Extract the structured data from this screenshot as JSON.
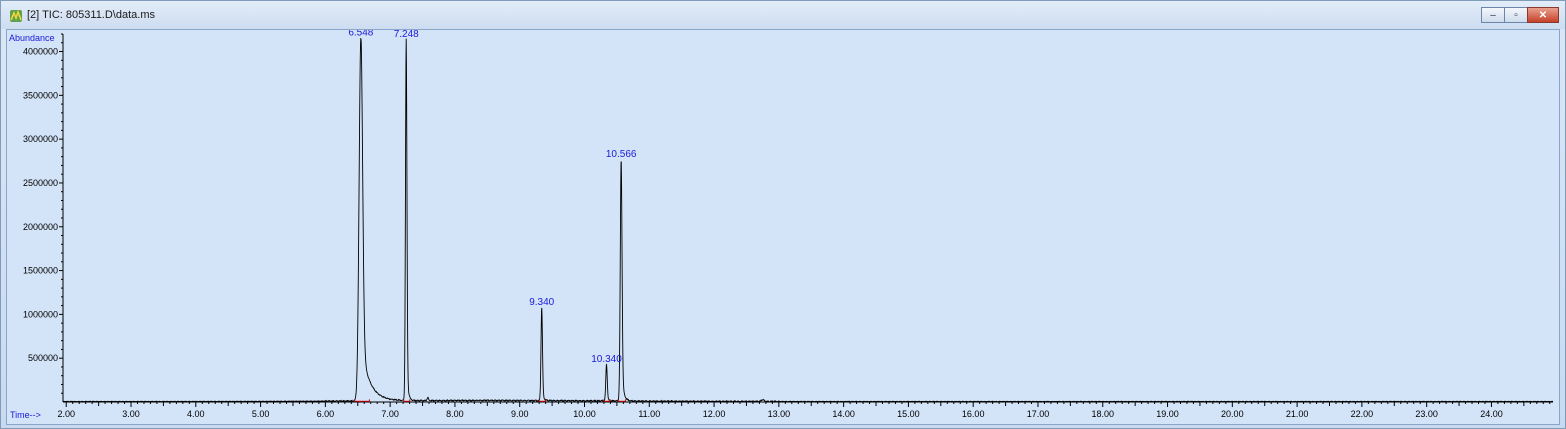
{
  "window": {
    "title": "[2] TIC: 805311.D\\data.ms",
    "icon": "chromatogram-app-icon",
    "buttons": [
      {
        "name": "minimize",
        "glyph": "–"
      },
      {
        "name": "maximize",
        "glyph": "▫"
      },
      {
        "name": "close",
        "glyph": "✕"
      }
    ]
  },
  "chart_data": {
    "type": "line",
    "ylabel": "Abundance",
    "xlabel": "Time-->",
    "xlim": [
      1.95,
      24.95
    ],
    "ylim": [
      0,
      4200000
    ],
    "x_ticks": [
      2,
      3,
      4,
      5,
      6,
      7,
      8,
      9,
      10,
      11,
      12,
      13,
      14,
      15,
      16,
      17,
      18,
      19,
      20,
      21,
      22,
      23,
      24
    ],
    "x_tick_labels": [
      "2.00",
      "3.00",
      "4.00",
      "5.00",
      "6.00",
      "7.00",
      "8.00",
      "9.00",
      "10.00",
      "11.00",
      "12.00",
      "13.00",
      "14.00",
      "15.00",
      "16.00",
      "17.00",
      "18.00",
      "19.00",
      "20.00",
      "21.00",
      "22.00",
      "23.00",
      "24.00"
    ],
    "y_ticks": [
      500000,
      1000000,
      1500000,
      2000000,
      2500000,
      3000000,
      3500000,
      4000000
    ],
    "y_tick_labels": [
      "500000",
      "1000000",
      "1500000",
      "2000000",
      "2500000",
      "3000000",
      "3500000",
      "4000000"
    ],
    "peaks": [
      {
        "rt": 6.548,
        "label": "6.548",
        "height": 4150000,
        "width": 0.06,
        "tail": 0.12
      },
      {
        "rt": 7.248,
        "label": "7.248",
        "height": 4130000,
        "width": 0.025,
        "tail": 0.02
      },
      {
        "rt": 9.34,
        "label": "9.340",
        "height": 1070000,
        "width": 0.025,
        "tail": 0.02
      },
      {
        "rt": 10.34,
        "label": "10.340",
        "height": 420000,
        "width": 0.025,
        "tail": 0.02
      },
      {
        "rt": 10.566,
        "label": "10.566",
        "height": 2760000,
        "width": 0.03,
        "tail": 0.03
      }
    ],
    "colors": {
      "trace": "#000000",
      "integration": "#cc0000",
      "peak_labels": "#1a1adb",
      "axis_titles": "#1a1adb",
      "background": "#d3e3f8"
    },
    "grid": false
  }
}
